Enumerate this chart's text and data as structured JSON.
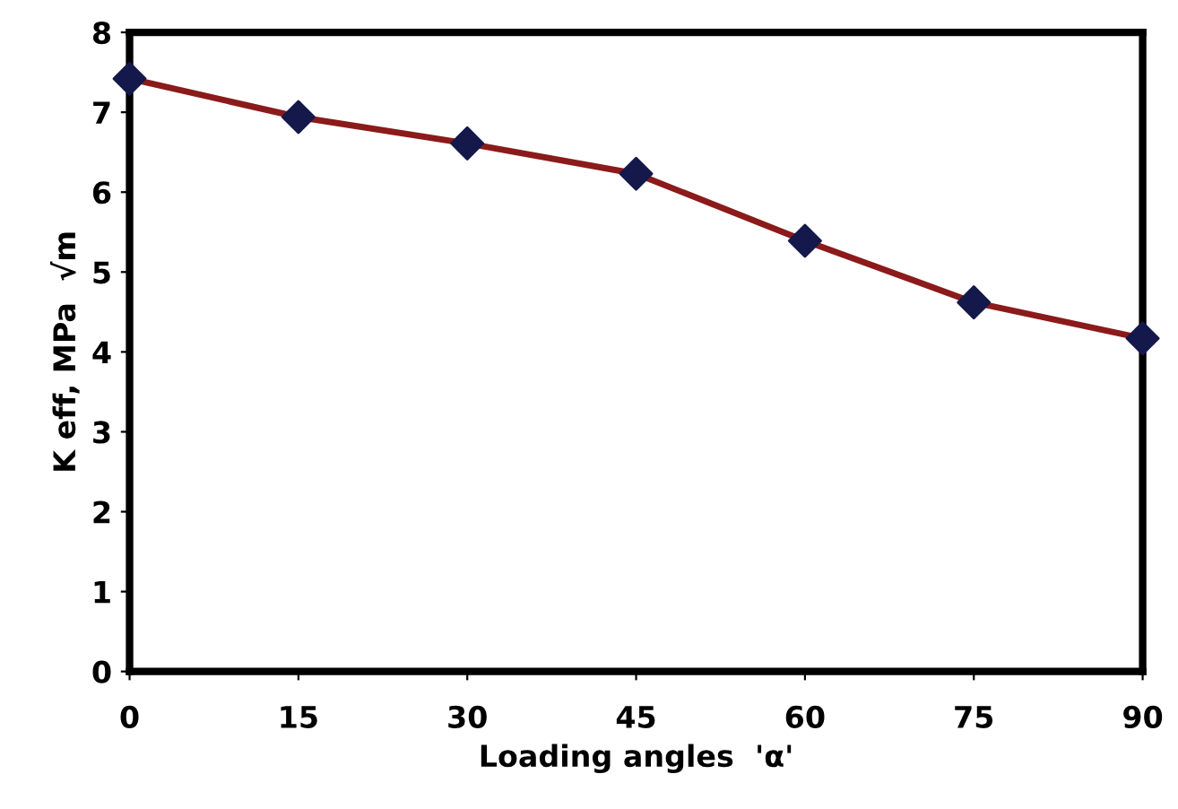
{
  "chart_data": {
    "type": "line",
    "xlabel": "Loading angles  'α'",
    "ylabel": "K eff, MPa  √m",
    "x": [
      0,
      15,
      30,
      45,
      60,
      75,
      90
    ],
    "series": [
      {
        "color": "#8b1a1a",
        "colors": [
          "#14184a",
          "#14184a",
          "#14184a",
          "#14184a",
          "#14184a",
          "#14184a",
          "#14184a"
        ],
        "values": [
          7.42,
          6.94,
          6.61,
          6.23,
          5.39,
          4.62,
          4.17
        ]
      }
    ],
    "xlim": [
      0,
      90
    ],
    "xticks": [
      0,
      15,
      30,
      45,
      60,
      75,
      90
    ],
    "ylim": [
      0,
      8
    ],
    "yticks": [
      0,
      1,
      2,
      3,
      4,
      5,
      6,
      7,
      8
    ],
    "marker": "diamond",
    "line_style": "solid",
    "grid": false,
    "legend": false
  }
}
